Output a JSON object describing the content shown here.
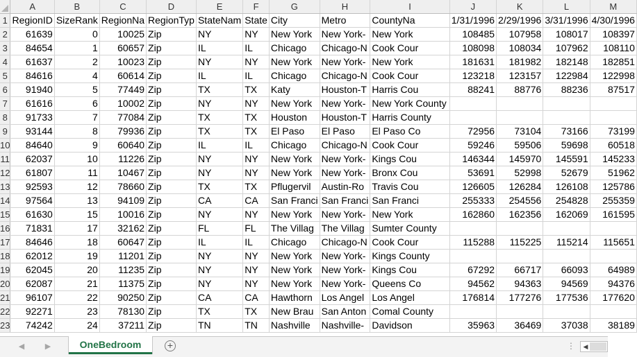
{
  "columns": [
    "A",
    "B",
    "C",
    "D",
    "E",
    "F",
    "G",
    "H",
    "I",
    "J",
    "K",
    "L",
    "M"
  ],
  "rows": [
    {
      "n": "1",
      "c": [
        "RegionID",
        "SizeRank",
        "RegionNa",
        "RegionTyp",
        "StateNam",
        "State",
        "City",
        "Metro",
        "CountyNa",
        "1/31/1996",
        "2/29/1996",
        "3/31/1996",
        "4/30/1996"
      ]
    },
    {
      "n": "2",
      "c": [
        "61639",
        "0",
        "10025",
        "Zip",
        "NY",
        "NY",
        "New York",
        "New York-",
        "New York",
        "108485",
        "107958",
        "108017",
        "108397"
      ]
    },
    {
      "n": "3",
      "c": [
        "84654",
        "1",
        "60657",
        "Zip",
        "IL",
        "IL",
        "Chicago",
        "Chicago-N",
        "Cook Cour",
        "108098",
        "108034",
        "107962",
        "108110"
      ]
    },
    {
      "n": "4",
      "c": [
        "61637",
        "2",
        "10023",
        "Zip",
        "NY",
        "NY",
        "New York",
        "New York-",
        "New York",
        "181631",
        "181982",
        "182148",
        "182851"
      ]
    },
    {
      "n": "5",
      "c": [
        "84616",
        "4",
        "60614",
        "Zip",
        "IL",
        "IL",
        "Chicago",
        "Chicago-N",
        "Cook Cour",
        "123218",
        "123157",
        "122984",
        "122998"
      ]
    },
    {
      "n": "6",
      "c": [
        "91940",
        "5",
        "77449",
        "Zip",
        "TX",
        "TX",
        "Katy",
        "Houston-T",
        "Harris Cou",
        "88241",
        "88776",
        "88236",
        "87517"
      ]
    },
    {
      "n": "7",
      "c": [
        "61616",
        "6",
        "10002",
        "Zip",
        "NY",
        "NY",
        "New York",
        "New York-",
        "New York County",
        "",
        "",
        "",
        ""
      ]
    },
    {
      "n": "8",
      "c": [
        "91733",
        "7",
        "77084",
        "Zip",
        "TX",
        "TX",
        "Houston",
        "Houston-T",
        "Harris County",
        "",
        "",
        "",
        ""
      ]
    },
    {
      "n": "9",
      "c": [
        "93144",
        "8",
        "79936",
        "Zip",
        "TX",
        "TX",
        "El Paso",
        "El Paso",
        "El Paso Co",
        "72956",
        "73104",
        "73166",
        "73199"
      ]
    },
    {
      "n": "10",
      "c": [
        "84640",
        "9",
        "60640",
        "Zip",
        "IL",
        "IL",
        "Chicago",
        "Chicago-N",
        "Cook Cour",
        "59246",
        "59506",
        "59698",
        "60518"
      ]
    },
    {
      "n": "11",
      "c": [
        "62037",
        "10",
        "11226",
        "Zip",
        "NY",
        "NY",
        "New York",
        "New York-",
        "Kings Cou",
        "146344",
        "145970",
        "145591",
        "145233"
      ]
    },
    {
      "n": "12",
      "c": [
        "61807",
        "11",
        "10467",
        "Zip",
        "NY",
        "NY",
        "New York",
        "New York-",
        "Bronx Cou",
        "53691",
        "52998",
        "52679",
        "51962"
      ]
    },
    {
      "n": "13",
      "c": [
        "92593",
        "12",
        "78660",
        "Zip",
        "TX",
        "TX",
        "Pflugervil",
        "Austin-Ro",
        "Travis Cou",
        "126605",
        "126284",
        "126108",
        "125786"
      ]
    },
    {
      "n": "14",
      "c": [
        "97564",
        "13",
        "94109",
        "Zip",
        "CA",
        "CA",
        "San Franci",
        "San Franci",
        "San Franci",
        "255333",
        "254556",
        "254828",
        "255359"
      ]
    },
    {
      "n": "15",
      "c": [
        "61630",
        "15",
        "10016",
        "Zip",
        "NY",
        "NY",
        "New York",
        "New York-",
        "New York",
        "162860",
        "162356",
        "162069",
        "161595"
      ]
    },
    {
      "n": "16",
      "c": [
        "71831",
        "17",
        "32162",
        "Zip",
        "FL",
        "FL",
        "The Villag",
        "The Villag",
        "Sumter County",
        "",
        "",
        "",
        ""
      ]
    },
    {
      "n": "17",
      "c": [
        "84646",
        "18",
        "60647",
        "Zip",
        "IL",
        "IL",
        "Chicago",
        "Chicago-N",
        "Cook Cour",
        "115288",
        "115225",
        "115214",
        "115651"
      ]
    },
    {
      "n": "18",
      "c": [
        "62012",
        "19",
        "11201",
        "Zip",
        "NY",
        "NY",
        "New York",
        "New York-",
        "Kings County",
        "",
        "",
        "",
        ""
      ]
    },
    {
      "n": "19",
      "c": [
        "62045",
        "20",
        "11235",
        "Zip",
        "NY",
        "NY",
        "New York",
        "New York-",
        "Kings Cou",
        "67292",
        "66717",
        "66093",
        "64989"
      ]
    },
    {
      "n": "20",
      "c": [
        "62087",
        "21",
        "11375",
        "Zip",
        "NY",
        "NY",
        "New York",
        "New York-",
        "Queens Co",
        "94562",
        "94363",
        "94569",
        "94376"
      ]
    },
    {
      "n": "21",
      "c": [
        "96107",
        "22",
        "90250",
        "Zip",
        "CA",
        "CA",
        "Hawthorn",
        "Los Angel",
        "Los Angel",
        "176814",
        "177276",
        "177536",
        "177620"
      ]
    },
    {
      "n": "22",
      "c": [
        "92271",
        "23",
        "78130",
        "Zip",
        "TX",
        "TX",
        "New Brau",
        "San Anton",
        "Comal County",
        "",
        "",
        "",
        ""
      ]
    },
    {
      "n": "23",
      "c": [
        "74242",
        "24",
        "37211",
        "Zip",
        "TN",
        "TN",
        "Nashville",
        "Nashville-",
        "Davidson",
        "35963",
        "36469",
        "37038",
        "38189"
      ]
    }
  ],
  "sheet_tab": "OneBedroom",
  "icons": {
    "add_sheet": "plus-circle-icon",
    "nav_prev": "caret-left-icon",
    "nav_next": "caret-right-icon",
    "options": "ellipsis-icon",
    "scroll_left": "scroll-left-arrow-icon"
  },
  "colors": {
    "accent": "#217346",
    "header_bg": "#efefef",
    "grid_line": "#d4d4d4"
  }
}
